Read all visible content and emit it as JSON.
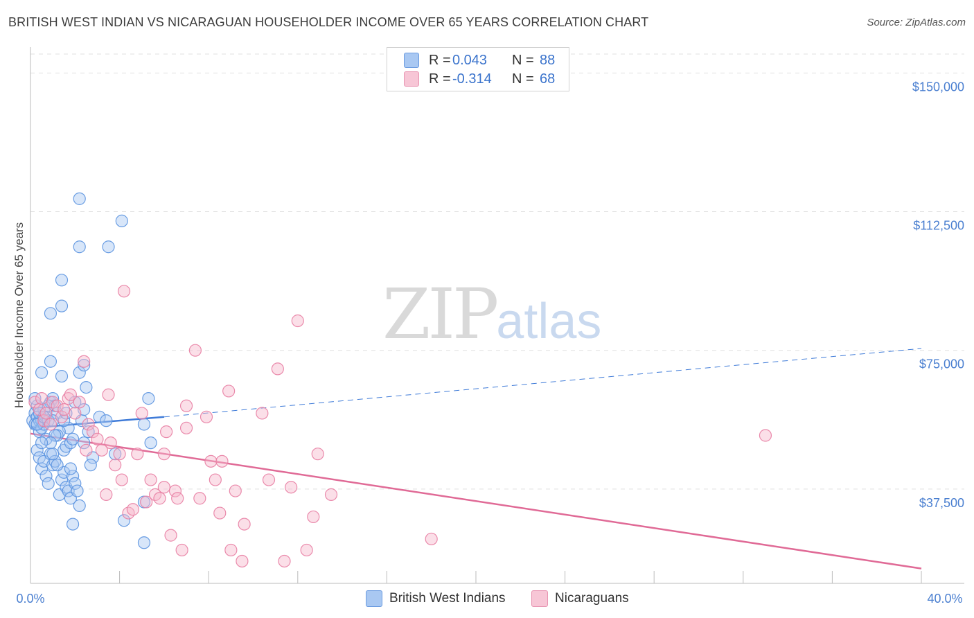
{
  "title": "BRITISH WEST INDIAN VS NICARAGUAN HOUSEHOLDER INCOME OVER 65 YEARS CORRELATION CHART",
  "source": "Source: ZipAtlas.com",
  "watermark": {
    "zip": "ZIP",
    "atlas": "atlas"
  },
  "legend": {
    "rows": [
      {
        "r_label": "R =",
        "r_value": "0.043",
        "n_label": "N =",
        "n_value": "88",
        "color": "#a9c8f2"
      },
      {
        "r_label": "R =",
        "r_value": "-0.314",
        "n_label": "N =",
        "n_value": "68",
        "color": "#f7b8cd"
      }
    ]
  },
  "bottom_legend": [
    {
      "label": "British West Indians",
      "color": "#a9c8f2"
    },
    {
      "label": "Nicaraguans",
      "color": "#f7b8cd"
    }
  ],
  "chart_data": {
    "type": "scatter",
    "title": "BRITISH WEST INDIAN VS NICARAGUAN HOUSEHOLDER INCOME OVER 65 YEARS CORRELATION CHART",
    "xlabel": "",
    "ylabel": "Householder Income Over 65 years",
    "xlim": [
      0,
      40
    ],
    "ylim": [
      12000,
      157000
    ],
    "x_tick_labels": {
      "left": "0.0%",
      "right": "40.0%"
    },
    "y_ticks": [
      {
        "value": 150000,
        "label": "$150,000"
      },
      {
        "value": 112500,
        "label": "$112,500"
      },
      {
        "value": 75000,
        "label": "$75,000"
      },
      {
        "value": 37500,
        "label": "$37,500"
      }
    ],
    "series": [
      {
        "name": "British West Indians",
        "color": "#5b93e0",
        "fill": "#a9c8f2",
        "trend": {
          "x0": 0,
          "y0": 54000,
          "x1": 6,
          "y1": 57000,
          "dashed_to_x": 40,
          "dashed_to_y": 75500,
          "line_color": "#3f7bd8"
        },
        "points": [
          [
            0.1,
            56
          ],
          [
            0.2,
            58
          ],
          [
            0.2,
            55
          ],
          [
            0.3,
            57
          ],
          [
            0.3,
            60
          ],
          [
            0.4,
            56
          ],
          [
            0.4,
            53
          ],
          [
            0.5,
            54
          ],
          [
            0.5,
            56
          ],
          [
            0.6,
            59
          ],
          [
            0.6,
            55
          ],
          [
            0.7,
            57
          ],
          [
            0.8,
            56
          ],
          [
            0.9,
            61
          ],
          [
            1.0,
            62
          ],
          [
            1.1,
            60
          ],
          [
            1.2,
            58
          ],
          [
            0.3,
            48
          ],
          [
            0.4,
            46
          ],
          [
            0.5,
            43
          ],
          [
            0.6,
            45
          ],
          [
            0.7,
            41
          ],
          [
            0.8,
            39
          ],
          [
            0.9,
            47
          ],
          [
            1.0,
            44
          ],
          [
            1.1,
            45
          ],
          [
            1.3,
            36
          ],
          [
            1.4,
            40
          ],
          [
            1.5,
            42
          ],
          [
            1.6,
            38
          ],
          [
            1.7,
            37
          ],
          [
            1.8,
            35
          ],
          [
            1.9,
            41
          ],
          [
            2.0,
            39
          ],
          [
            2.1,
            37
          ],
          [
            2.2,
            33
          ],
          [
            1.5,
            48
          ],
          [
            1.6,
            49
          ],
          [
            1.7,
            54
          ],
          [
            1.8,
            50
          ],
          [
            1.9,
            51
          ],
          [
            2.3,
            56
          ],
          [
            2.4,
            50
          ],
          [
            2.6,
            53
          ],
          [
            2.8,
            46
          ],
          [
            3.1,
            57
          ],
          [
            3.4,
            56
          ],
          [
            3.8,
            47
          ],
          [
            4.2,
            29
          ],
          [
            5.1,
            55
          ],
          [
            5.3,
            62
          ],
          [
            5.4,
            50
          ],
          [
            0.5,
            69
          ],
          [
            0.9,
            72
          ],
          [
            1.4,
            68
          ],
          [
            2.2,
            69
          ],
          [
            2.5,
            65
          ],
          [
            2.4,
            71
          ],
          [
            0.9,
            85
          ],
          [
            1.4,
            87
          ],
          [
            1.4,
            94
          ],
          [
            2.2,
            103
          ],
          [
            2.2,
            116
          ],
          [
            3.5,
            103
          ],
          [
            4.1,
            110
          ],
          [
            1.9,
            28
          ],
          [
            5.1,
            23
          ],
          [
            0.7,
            51
          ],
          [
            1.0,
            47
          ],
          [
            1.3,
            53
          ],
          [
            0.2,
            62
          ],
          [
            0.3,
            55
          ],
          [
            0.4,
            58
          ],
          [
            0.6,
            57
          ],
          [
            0.8,
            60
          ],
          [
            1.0,
            56
          ],
          [
            1.2,
            52
          ],
          [
            1.5,
            56
          ],
          [
            2.0,
            61
          ],
          [
            2.4,
            59
          ],
          [
            1.1,
            52
          ],
          [
            1.6,
            58
          ],
          [
            0.9,
            50
          ],
          [
            0.5,
            50
          ],
          [
            1.2,
            44
          ],
          [
            1.8,
            43
          ],
          [
            2.7,
            44
          ],
          [
            5.1,
            34
          ]
        ]
      },
      {
        "name": "Nicaraguans",
        "color": "#e87ea3",
        "fill": "#f7b8cd",
        "trend": {
          "x0": 0,
          "y0": 52500,
          "x1": 40,
          "y1": 16000,
          "line_color": "#e06a96"
        },
        "points": [
          [
            0.2,
            61
          ],
          [
            0.4,
            59
          ],
          [
            0.5,
            62
          ],
          [
            0.6,
            56
          ],
          [
            0.7,
            58
          ],
          [
            0.9,
            55
          ],
          [
            1.0,
            61
          ],
          [
            1.2,
            60
          ],
          [
            1.4,
            57
          ],
          [
            1.5,
            59
          ],
          [
            1.7,
            62
          ],
          [
            2.0,
            58
          ],
          [
            2.2,
            61
          ],
          [
            2.4,
            72
          ],
          [
            2.6,
            55
          ],
          [
            2.8,
            53
          ],
          [
            3.0,
            51
          ],
          [
            3.2,
            48
          ],
          [
            3.5,
            63
          ],
          [
            3.6,
            50
          ],
          [
            3.8,
            44
          ],
          [
            4.0,
            47
          ],
          [
            4.1,
            40
          ],
          [
            4.2,
            91
          ],
          [
            4.4,
            31
          ],
          [
            4.6,
            32
          ],
          [
            4.8,
            47
          ],
          [
            5.0,
            58
          ],
          [
            5.2,
            34
          ],
          [
            5.4,
            40
          ],
          [
            5.6,
            36
          ],
          [
            5.8,
            35
          ],
          [
            6.0,
            47
          ],
          [
            6.0,
            38
          ],
          [
            6.1,
            53
          ],
          [
            6.3,
            25
          ],
          [
            6.5,
            37
          ],
          [
            6.6,
            35
          ],
          [
            6.8,
            21
          ],
          [
            7.0,
            54
          ],
          [
            7.0,
            60
          ],
          [
            7.4,
            75
          ],
          [
            7.6,
            35
          ],
          [
            7.9,
            57
          ],
          [
            8.1,
            45
          ],
          [
            8.3,
            40
          ],
          [
            8.5,
            31
          ],
          [
            8.6,
            45
          ],
          [
            8.9,
            64
          ],
          [
            9.0,
            21
          ],
          [
            9.2,
            37
          ],
          [
            9.5,
            18
          ],
          [
            9.6,
            28
          ],
          [
            10.4,
            58
          ],
          [
            10.7,
            40
          ],
          [
            11.1,
            70
          ],
          [
            11.4,
            18
          ],
          [
            11.7,
            38
          ],
          [
            12.0,
            83
          ],
          [
            12.4,
            21
          ],
          [
            12.7,
            30
          ],
          [
            12.9,
            47
          ],
          [
            13.5,
            36
          ],
          [
            18.0,
            24
          ],
          [
            33.0,
            52
          ],
          [
            3.4,
            36
          ],
          [
            2.5,
            48
          ],
          [
            1.8,
            63
          ]
        ]
      }
    ]
  }
}
